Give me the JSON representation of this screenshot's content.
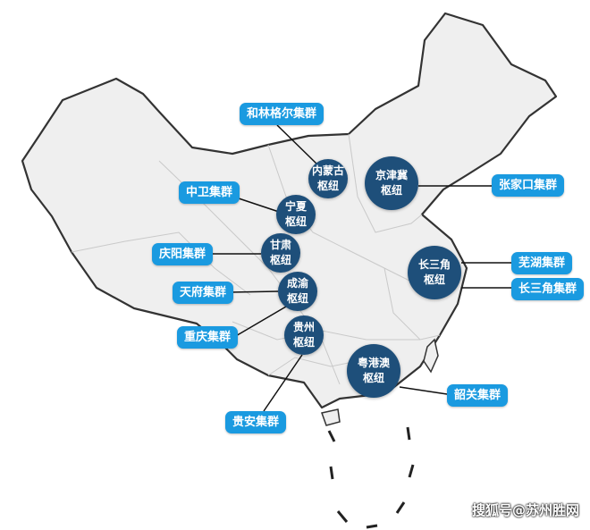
{
  "colors": {
    "cluster_label": "#1a9ae0",
    "hub_circle": "#1e4f7a",
    "map_fill": "#efefef",
    "border": "#333333"
  },
  "hubs": [
    {
      "name": "内蒙古枢纽",
      "line1": "内蒙古",
      "line2": "枢纽"
    },
    {
      "name": "京津冀枢纽",
      "line1": "京津冀",
      "line2": "枢纽"
    },
    {
      "name": "宁夏枢纽",
      "line1": "宁夏",
      "line2": "枢纽"
    },
    {
      "name": "甘肃枢纽",
      "line1": "甘肃",
      "line2": "枢纽"
    },
    {
      "name": "长三角枢纽",
      "line1": "长三角",
      "line2": "枢纽"
    },
    {
      "name": "成渝枢纽",
      "line1": "成渝",
      "line2": "枢纽"
    },
    {
      "name": "贵州枢纽",
      "line1": "贵州",
      "line2": "枢纽"
    },
    {
      "name": "粤港澳枢纽",
      "line1": "粤港澳",
      "line2": "枢纽"
    }
  ],
  "clusters": [
    "和林格尔集群",
    "中卫集群",
    "庆阳集群",
    "天府集群",
    "重庆集群",
    "贵安集群",
    "张家口集群",
    "芜湖集群",
    "长三角集群",
    "韶关集群"
  ],
  "watermark": "搜狐号@苏州胜网"
}
